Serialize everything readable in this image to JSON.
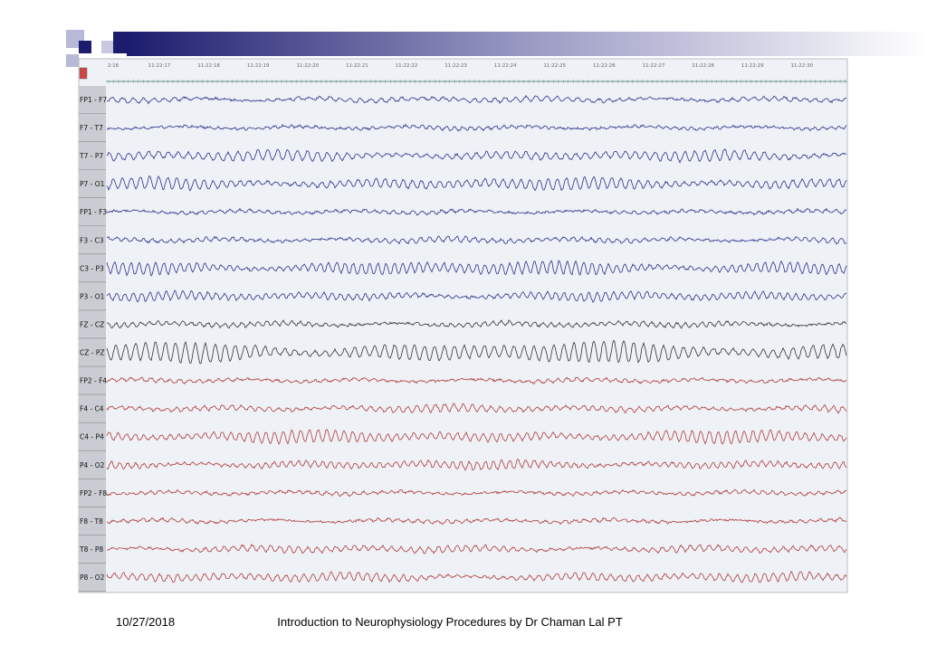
{
  "eeg": {
    "times": [
      "2:16",
      "11:22:17",
      "11:22:18",
      "11:22:19",
      "11:22:20",
      "11:22:21",
      "11:22:22",
      "11:22:23",
      "11:22:24",
      "11:22:25",
      "11:22:26",
      "11:22:27",
      "11:22:28",
      "11:22:29",
      "11:22:30"
    ],
    "channels": [
      {
        "label": "FP1 - F7",
        "color": "#2a2f8a"
      },
      {
        "label": "F7 - T7",
        "color": "#2a2f8a"
      },
      {
        "label": "T7 - P7",
        "color": "#2a2f8a"
      },
      {
        "label": "P7 - O1",
        "color": "#2a2f8a"
      },
      {
        "label": "FP1 - F3",
        "color": "#2a2f8a"
      },
      {
        "label": "F3 - C3",
        "color": "#2a2f8a"
      },
      {
        "label": "C3 - P3",
        "color": "#2a2f8a"
      },
      {
        "label": "P3 - O1",
        "color": "#2a2f8a"
      },
      {
        "label": "FZ - CZ",
        "color": "#333333"
      },
      {
        "label": "CZ - PZ",
        "color": "#333333"
      },
      {
        "label": "FP2 - F4",
        "color": "#b03a3a"
      },
      {
        "label": "F4 - C4",
        "color": "#b03a3a"
      },
      {
        "label": "C4 - P4",
        "color": "#b03a3a"
      },
      {
        "label": "P4 - O2",
        "color": "#b03a3a"
      },
      {
        "label": "FP2 - F8",
        "color": "#b03a3a"
      },
      {
        "label": "F8 - T8",
        "color": "#b03a3a"
      },
      {
        "label": "T8 - P8",
        "color": "#b03a3a"
      },
      {
        "label": "P8 - O2",
        "color": "#b03a3a"
      }
    ]
  },
  "footer": {
    "date": "10/27/2018",
    "text": "Introduction to Neurophysiology Procedures by Dr Chaman Lal PT"
  }
}
